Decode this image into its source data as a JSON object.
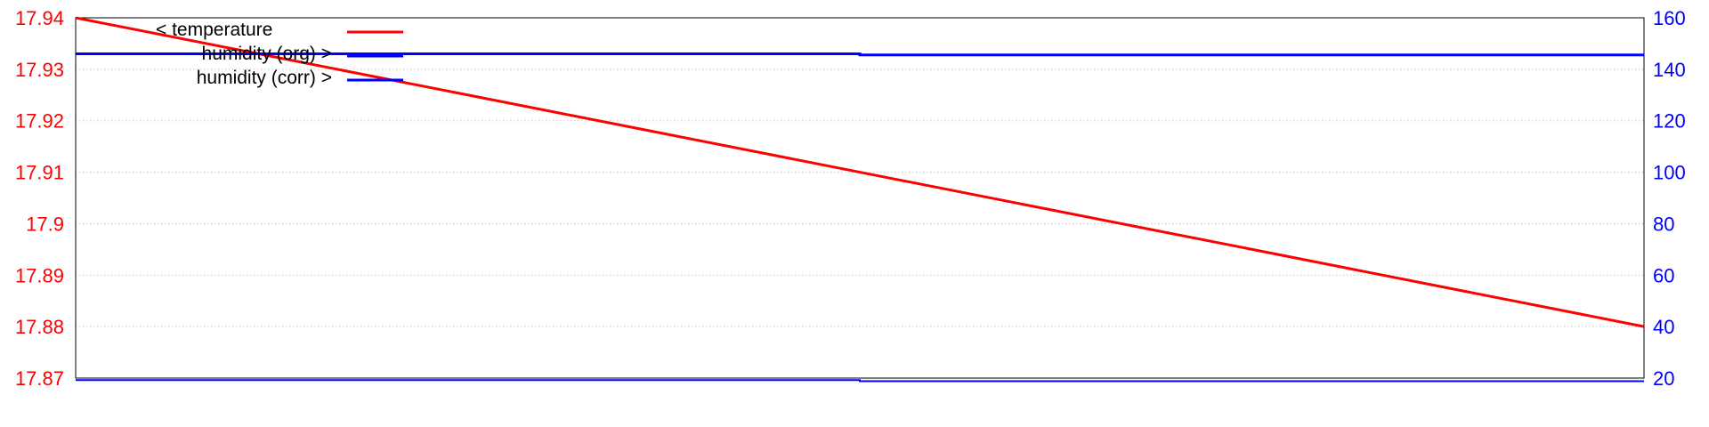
{
  "chart_data": {
    "type": "line",
    "title": "",
    "xlabel": "",
    "ylabel_left": "",
    "ylabel_right": "",
    "x_range": [
      0,
      1
    ],
    "ylim_left": [
      17.87,
      17.94
    ],
    "ylim_right": [
      20,
      160
    ],
    "left_ticks": [
      "17.94",
      "17.93",
      "17.92",
      "17.91",
      "17.9",
      "17.89",
      "17.88",
      "17.87"
    ],
    "left_tick_values": [
      17.94,
      17.93,
      17.92,
      17.91,
      17.9,
      17.89,
      17.88,
      17.87
    ],
    "right_ticks": [
      "160",
      "140",
      "120",
      "100",
      "80",
      "60",
      "40",
      "20"
    ],
    "right_tick_values": [
      160,
      140,
      120,
      100,
      80,
      60,
      40,
      20
    ],
    "grid": "horizontal dotted",
    "legend_position": "top-left",
    "series": [
      {
        "name": "< temperature",
        "axis": "left",
        "color": "#ff0000",
        "x": [
          0,
          1
        ],
        "y": [
          17.94,
          17.88
        ]
      },
      {
        "name": "humidity (org) >",
        "axis": "right",
        "color": "#0000ff",
        "x": [
          0,
          0.5,
          0.5,
          1
        ],
        "y": [
          146,
          146,
          145.6,
          145.6
        ]
      },
      {
        "name": "humidity (corr) >",
        "axis": "right",
        "color": "#0000ff",
        "x": [
          0,
          0.5,
          0.5,
          1
        ],
        "y": [
          19.2,
          19.2,
          18.8,
          18.8
        ]
      }
    ]
  }
}
